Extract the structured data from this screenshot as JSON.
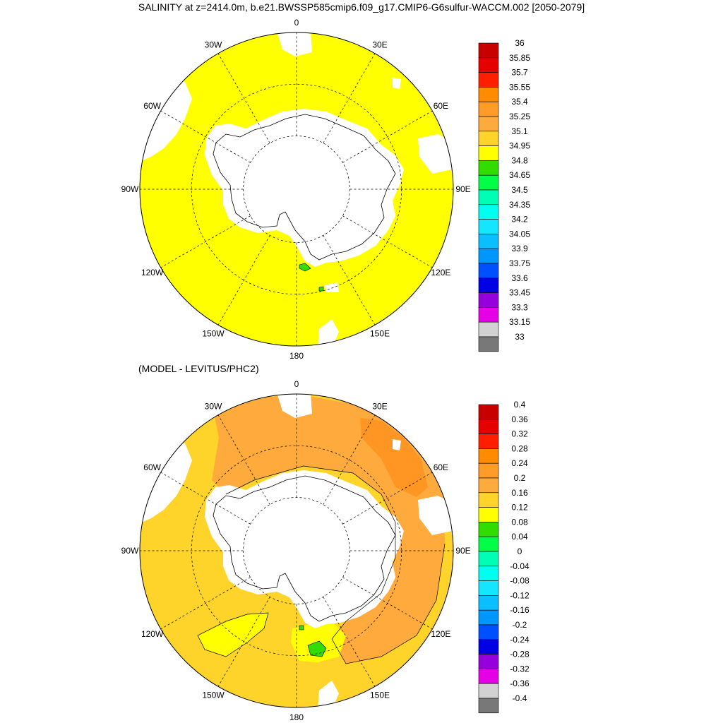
{
  "title": "SALINITY at z=2414.0m, b.e21.BWSSP585cmip6.f09_g17.CMIP6-G6sulfur-WACCM.002 [2050-2079]",
  "subtitle": "(MODEL - LEVITUS/PHC2)",
  "lon_labels": [
    "0",
    "30E",
    "60E",
    "90E",
    "120E",
    "150E",
    "180",
    "150W",
    "120W",
    "90W",
    "60W",
    "30W"
  ],
  "colors": {
    "land": "#ffffff",
    "map1_fill": "#ffff00",
    "map2_base": "#ffd42a",
    "map2_mid": "#ffaa3c",
    "map2_high": "#ff9624",
    "map2_low": "#ffff00",
    "map2_green": "#32dc00",
    "grid": "#000000"
  },
  "colorbar1": {
    "labels": [
      "36",
      "35.85",
      "35.7",
      "35.55",
      "35.4",
      "35.25",
      "35.1",
      "34.95",
      "34.8",
      "34.65",
      "34.5",
      "34.35",
      "34.2",
      "34.05",
      "33.9",
      "33.75",
      "33.6",
      "33.45",
      "33.3",
      "33.15",
      "33"
    ],
    "colors": [
      "#c80000",
      "#e60000",
      "#ff1e00",
      "#ff8c00",
      "#ff9b28",
      "#ffaa3c",
      "#ffd42a",
      "#ffff00",
      "#32dc00",
      "#00ff46",
      "#00ffb4",
      "#00fff0",
      "#14e6ff",
      "#0abeff",
      "#0096ff",
      "#0050ff",
      "#0000e6",
      "#9600dc",
      "#e600e6",
      "#d2d2d2",
      "#787878"
    ]
  },
  "colorbar2": {
    "labels": [
      "0.4",
      "0.36",
      "0.32",
      "0.28",
      "0.24",
      "0.2",
      "0.16",
      "0.12",
      "0.08",
      "0.04",
      "0",
      "-0.04",
      "-0.08",
      "-0.12",
      "-0.16",
      "-0.2",
      "-0.24",
      "-0.28",
      "-0.32",
      "-0.36",
      "-0.4"
    ],
    "colors": [
      "#c80000",
      "#e60000",
      "#ff1e00",
      "#ff8c00",
      "#ff9b28",
      "#ffaa3c",
      "#ffd42a",
      "#ffff00",
      "#32dc00",
      "#00ff46",
      "#00ffb4",
      "#00fff0",
      "#14e6ff",
      "#0abeff",
      "#0096ff",
      "#0050ff",
      "#0000e6",
      "#9600dc",
      "#e600e6",
      "#d2d2d2",
      "#787878"
    ]
  }
}
